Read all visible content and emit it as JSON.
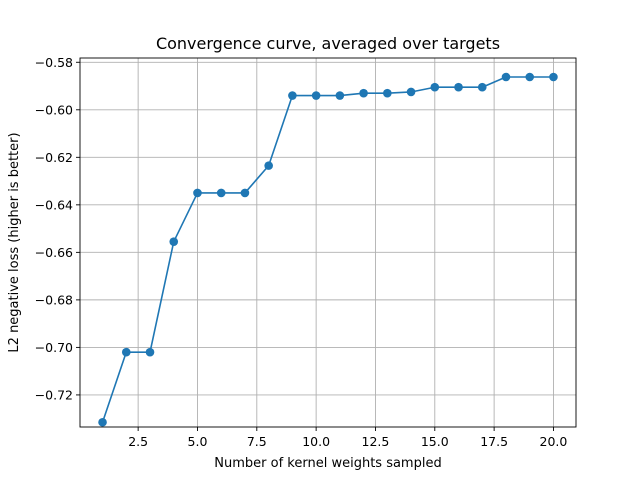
{
  "chart_data": {
    "type": "line",
    "title": "Convergence curve, averaged over targets",
    "xlabel": "Number of kernel weights sampled",
    "ylabel": "L2 negative loss (higher is better)",
    "xlim": [
      0.05,
      20.95
    ],
    "ylim": [
      -0.7335,
      -0.5782
    ],
    "xticks": [
      2.5,
      5.0,
      7.5,
      10.0,
      12.5,
      15.0,
      17.5,
      20.0
    ],
    "xtick_labels": [
      "2.5",
      "5.0",
      "7.5",
      "10.0",
      "12.5",
      "15.0",
      "17.5",
      "20.0"
    ],
    "yticks": [
      -0.72,
      -0.7,
      -0.68,
      -0.66,
      -0.64,
      -0.62,
      -0.6,
      -0.58
    ],
    "ytick_labels": [
      "−0.72",
      "−0.70",
      "−0.68",
      "−0.66",
      "−0.64",
      "−0.62",
      "−0.60",
      "−0.58"
    ],
    "grid": true,
    "color": "#1f77b4",
    "series": [
      {
        "x": [
          1,
          2,
          3,
          4,
          5,
          6,
          7,
          8,
          9,
          10,
          11,
          12,
          13,
          14,
          15,
          16,
          17,
          18,
          19,
          20
        ],
        "y": [
          -0.7315,
          -0.702,
          -0.702,
          -0.6555,
          -0.635,
          -0.635,
          -0.635,
          -0.6235,
          -0.594,
          -0.594,
          -0.594,
          -0.593,
          -0.593,
          -0.5925,
          -0.5905,
          -0.5905,
          -0.5905,
          -0.5862,
          -0.5862,
          -0.5862
        ]
      }
    ]
  }
}
